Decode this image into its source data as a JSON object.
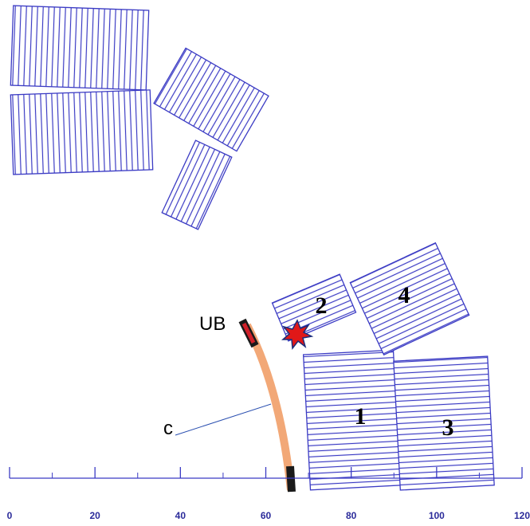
{
  "labels": {
    "ub": "UB",
    "conductor": "c",
    "block1": "1",
    "block2": "2",
    "block3": "3",
    "block4": "4"
  },
  "axis": {
    "ticks": [
      0,
      20,
      40,
      60,
      80,
      100,
      120
    ],
    "lim": [
      0,
      120
    ]
  }
}
